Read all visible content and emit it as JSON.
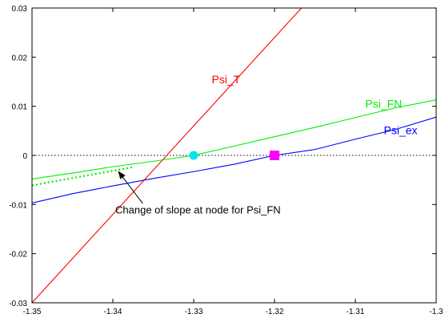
{
  "chart_data": {
    "type": "line",
    "xlim": [
      -1.35,
      -1.3
    ],
    "ylim": [
      -0.03,
      0.03
    ],
    "x_ticks": [
      -1.35,
      -1.34,
      -1.33,
      -1.32,
      -1.31,
      -1.3
    ],
    "x_tick_labels": [
      "-1.35",
      "-1.34",
      "-1.33",
      "-1.32",
      "-1.31",
      "-1.3"
    ],
    "y_ticks": [
      -0.03,
      -0.02,
      -0.01,
      0,
      0.01,
      0.02,
      0.03
    ],
    "y_tick_labels": [
      "-0.03",
      "-0.02",
      "-0.01",
      "0",
      "0.01",
      "0.02",
      "0.03"
    ],
    "grid": false,
    "reference_line": {
      "y": 0,
      "style": "dotted",
      "color": "#000000"
    },
    "series": [
      {
        "name": "Psi_T",
        "color": "#ff0000",
        "label_at": [
          -1.326,
          0.0147
        ],
        "points": [
          [
            -1.35,
            -0.03
          ],
          [
            -1.3,
            0.06
          ]
        ]
      },
      {
        "name": "Psi_FN",
        "color": "#00ee00",
        "label_at": [
          -1.3065,
          0.0097
        ],
        "points": [
          [
            -1.35,
            -0.0048
          ],
          [
            -1.345,
            -0.0036
          ],
          [
            -1.34,
            -0.0023
          ],
          [
            -1.335,
            -0.0012
          ],
          [
            -1.33,
            0.0
          ],
          [
            -1.325,
            0.0019
          ],
          [
            -1.32,
            0.0038
          ],
          [
            -1.315,
            0.0057
          ],
          [
            -1.31,
            0.0077
          ],
          [
            -1.305,
            0.0097
          ],
          [
            -1.3,
            0.0113
          ]
        ],
        "dotted_extension": {
          "points": [
            [
              -1.35,
              -0.0061
            ],
            [
              -1.3375,
              -0.0024
            ]
          ]
        }
      },
      {
        "name": "Psi_ex",
        "color": "#0000ff",
        "label_at": [
          -1.3044,
          0.0043
        ],
        "points": [
          [
            -1.35,
            -0.0097
          ],
          [
            -1.345,
            -0.0078
          ],
          [
            -1.34,
            -0.0062
          ],
          [
            -1.335,
            -0.0047
          ],
          [
            -1.33,
            -0.0033
          ],
          [
            -1.325,
            -0.0018
          ],
          [
            -1.32,
            0.0
          ],
          [
            -1.315,
            0.0012
          ],
          [
            -1.31,
            0.0033
          ],
          [
            -1.305,
            0.0053
          ],
          [
            -1.3,
            0.0078
          ]
        ]
      }
    ],
    "markers": [
      {
        "name": "node-circle",
        "shape": "circle",
        "color": "#00e5ee",
        "x": -1.33,
        "y": 0
      },
      {
        "name": "node-square",
        "shape": "square",
        "color": "#ff00ff",
        "x": -1.32,
        "y": 0
      }
    ],
    "annotations": [
      {
        "text": "Change of slope at node for Psi_FN",
        "text_at": [
          -1.3397,
          -0.0118
        ],
        "arrow_from": [
          -1.3363,
          -0.0098
        ],
        "arrow_to": [
          -1.3393,
          -0.0033
        ]
      }
    ]
  }
}
